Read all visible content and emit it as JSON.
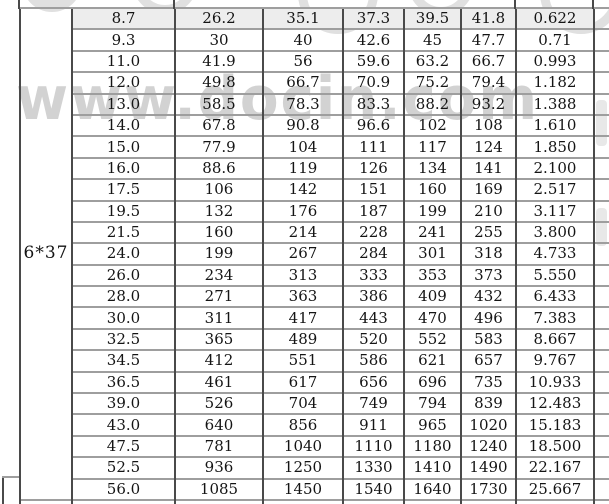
{
  "watermark": {
    "text": "www.docin.com"
  },
  "table": {
    "group_label": "6*37",
    "rows": [
      [
        "8.7",
        "26.2",
        "35.1",
        "37.3",
        "39.5",
        "41.8",
        "0.622"
      ],
      [
        "9.3",
        "30",
        "40",
        "42.6",
        "45",
        "47.7",
        "0.71"
      ],
      [
        "11.0",
        "41.9",
        "56",
        "59.6",
        "63.2",
        "66.7",
        "0.993"
      ],
      [
        "12.0",
        "49.8",
        "66.7",
        "70.9",
        "75.2",
        "79.4",
        "1.182"
      ],
      [
        "13.0",
        "58.5",
        "78.3",
        "83.3",
        "88.2",
        "93.2",
        "1.388"
      ],
      [
        "14.0",
        "67.8",
        "90.8",
        "96.6",
        "102",
        "108",
        "1.610"
      ],
      [
        "15.0",
        "77.9",
        "104",
        "111",
        "117",
        "124",
        "1.850"
      ],
      [
        "16.0",
        "88.6",
        "119",
        "126",
        "134",
        "141",
        "2.100"
      ],
      [
        "17.5",
        "106",
        "142",
        "151",
        "160",
        "169",
        "2.517"
      ],
      [
        "19.5",
        "132",
        "176",
        "187",
        "199",
        "210",
        "3.117"
      ],
      [
        "21.5",
        "160",
        "214",
        "228",
        "241",
        "255",
        "3.800"
      ],
      [
        "24.0",
        "199",
        "267",
        "284",
        "301",
        "318",
        "4.733"
      ],
      [
        "26.0",
        "234",
        "313",
        "333",
        "353",
        "373",
        "5.550"
      ],
      [
        "28.0",
        "271",
        "363",
        "386",
        "409",
        "432",
        "6.433"
      ],
      [
        "30.0",
        "311",
        "417",
        "443",
        "470",
        "496",
        "7.383"
      ],
      [
        "32.5",
        "365",
        "489",
        "520",
        "552",
        "583",
        "8.667"
      ],
      [
        "34.5",
        "412",
        "551",
        "586",
        "621",
        "657",
        "9.767"
      ],
      [
        "36.5",
        "461",
        "617",
        "656",
        "696",
        "735",
        "10.933"
      ],
      [
        "39.0",
        "526",
        "704",
        "749",
        "794",
        "839",
        "12.483"
      ],
      [
        "43.0",
        "640",
        "856",
        "911",
        "965",
        "1020",
        "15.183"
      ],
      [
        "47.5",
        "781",
        "1040",
        "1110",
        "1180",
        "1240",
        "18.500"
      ],
      [
        "52.5",
        "936",
        "1250",
        "1330",
        "1410",
        "1490",
        "22.167"
      ],
      [
        "56.0",
        "1085",
        "1450",
        "1540",
        "1640",
        "1730",
        "25.667"
      ]
    ]
  }
}
